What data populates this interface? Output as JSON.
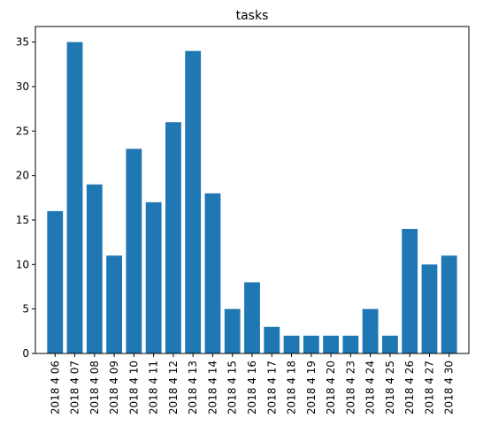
{
  "chart_data": {
    "type": "bar",
    "title": "tasks",
    "xlabel": "",
    "ylabel": "",
    "categories": [
      "2018 4 06",
      "2018 4 07",
      "2018 4 08",
      "2018 4 09",
      "2018 4 10",
      "2018 4 11",
      "2018 4 12",
      "2018 4 13",
      "2018 4 14",
      "2018 4 15",
      "2018 4 16",
      "2018 4 17",
      "2018 4 18",
      "2018 4 19",
      "2018 4 20",
      "2018 4 23",
      "2018 4 24",
      "2018 4 25",
      "2018 4 26",
      "2018 4 27",
      "2018 4 30"
    ],
    "values": [
      16,
      35,
      19,
      11,
      23,
      17,
      26,
      34,
      18,
      5,
      8,
      3,
      2,
      2,
      2,
      2,
      5,
      2,
      14,
      10,
      11
    ],
    "ylim": [
      0,
      36.75
    ],
    "yticks": [
      0,
      5,
      10,
      15,
      20,
      25,
      30,
      35
    ],
    "bar_color": "#1f77b4",
    "grid": false,
    "legend": "none"
  }
}
